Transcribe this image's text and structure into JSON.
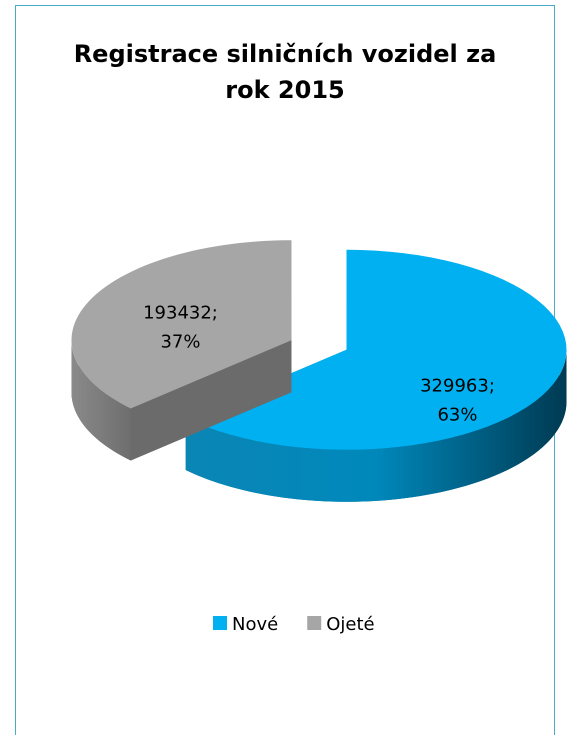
{
  "chart_data": {
    "type": "pie",
    "title": "Registrace silničních vozidel za rok 2015",
    "categories": [
      "Nové",
      "Ojeté"
    ],
    "values": [
      329963,
      193432
    ],
    "value_labels": [
      "329963; 63%",
      "193432; 37%"
    ],
    "colors": [
      "#00b0f0",
      "#a6a6a6"
    ],
    "legend": "bottom"
  }
}
